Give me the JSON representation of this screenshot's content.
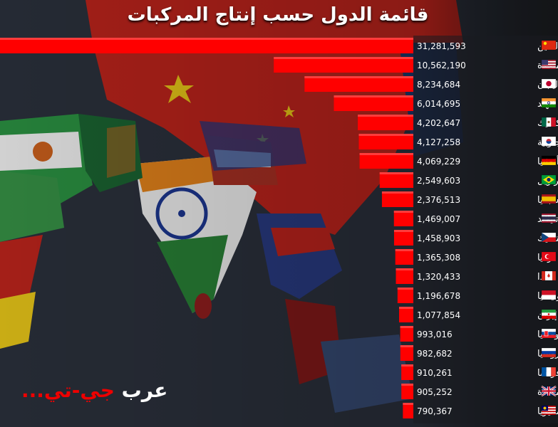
{
  "title": "قائمة الدول حسب إنتاج المركبات",
  "logo": {
    "part1": "عرب",
    "part2": "جي-تي..."
  },
  "colors": {
    "bar": "#ff0000",
    "bar_edge": "#ff5555",
    "text": "#ffffff",
    "panel": "#1a1c20"
  },
  "chart_data": {
    "type": "bar",
    "orientation": "horizontal",
    "title": "قائمة الدول حسب إنتاج المركبات",
    "xlabel": "",
    "ylabel": "",
    "categories": [
      "الصين",
      "الولايات المتحدة",
      "اليابان",
      "الهند",
      "المكسيك",
      "كوريا الجنوبية",
      "ألمانيا",
      "البرازيل",
      "إسبانيا",
      "تايلاند",
      "جمهورية التشيك",
      "تركيا",
      "كندا",
      "إندونيسيا",
      "إيران",
      "سلوفاكيا",
      "روسيا",
      "فرنسا",
      "المملكة المتحدة",
      "ماليزيا"
    ],
    "values": [
      31281593,
      10562190,
      8234684,
      6014695,
      4202647,
      4127258,
      4069229,
      2549603,
      2376513,
      1469007,
      1458903,
      1365308,
      1320433,
      1196678,
      1077854,
      993016,
      982682,
      910261,
      905252,
      790367
    ],
    "value_labels": [
      "31,281,593",
      "10,562,190",
      "8,234,684",
      "6,014,695",
      "4,202,647",
      "4,127,258",
      "4,069,229",
      "2,549,603",
      "2,376,513",
      "1,469,007",
      "1,458,903",
      "1,365,308",
      "1,320,433",
      "1,196,678",
      "1,077,854",
      "993,016",
      "982,682",
      "910,261",
      "905,252",
      "790,367"
    ],
    "flags": [
      "china-flag-icon",
      "usa-flag-icon",
      "japan-flag-icon",
      "india-flag-icon",
      "mexico-flag-icon",
      "south-korea-flag-icon",
      "germany-flag-icon",
      "brazil-flag-icon",
      "spain-flag-icon",
      "thailand-flag-icon",
      "czech-flag-icon",
      "turkey-flag-icon",
      "canada-flag-icon",
      "indonesia-flag-icon",
      "iran-flag-icon",
      "slovakia-flag-icon",
      "russia-flag-icon",
      "france-flag-icon",
      "uk-flag-icon",
      "malaysia-flag-icon"
    ],
    "legend": false,
    "grid": false
  }
}
